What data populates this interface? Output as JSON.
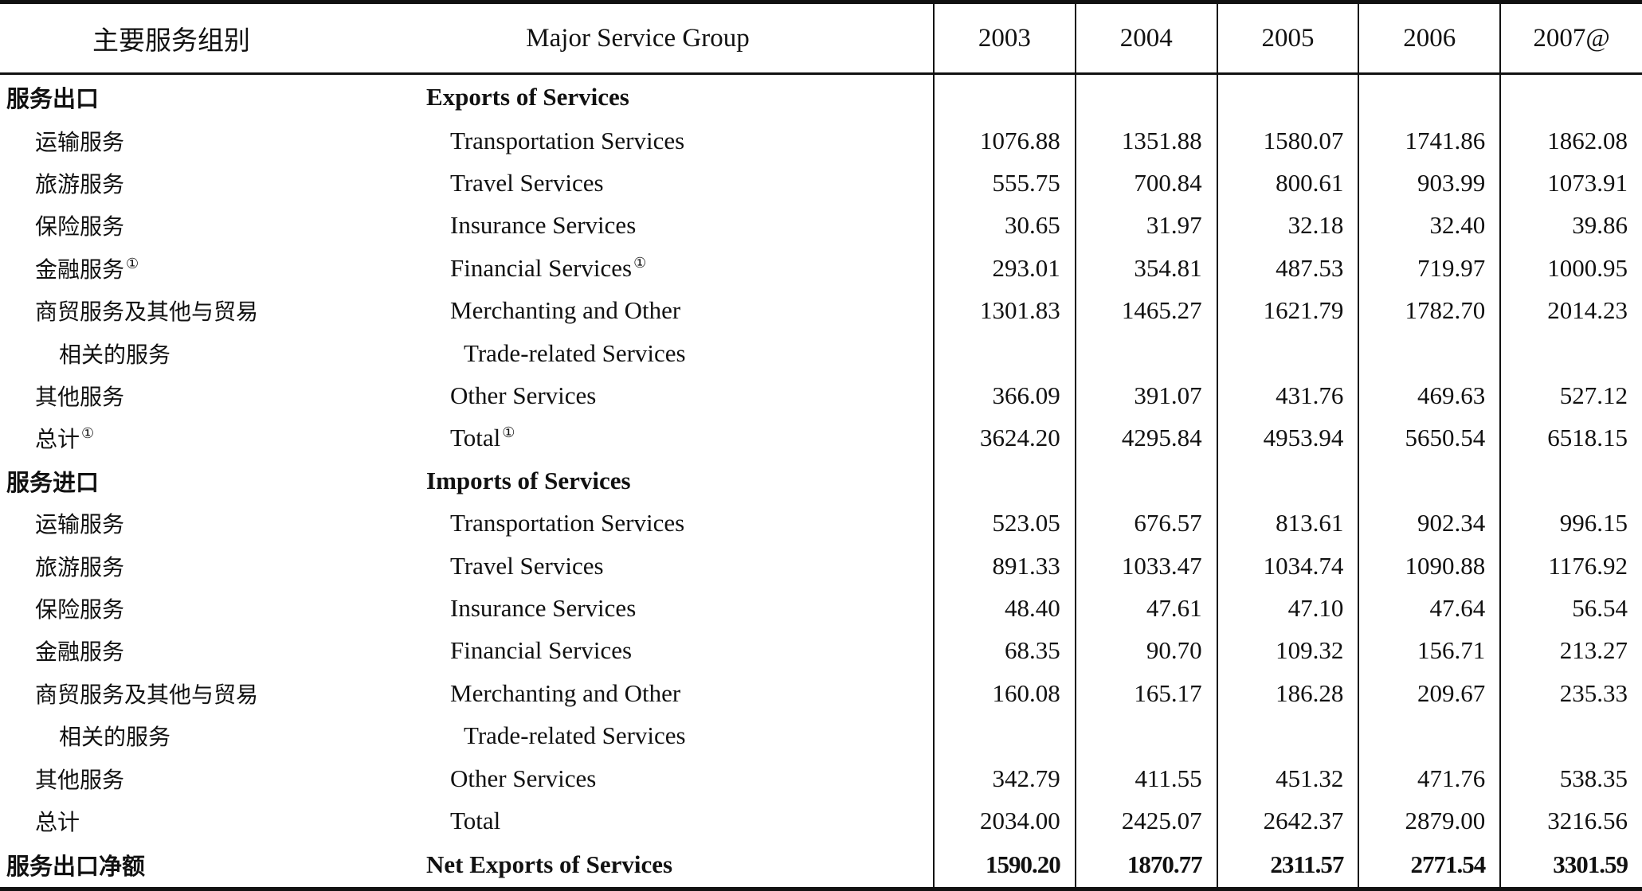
{
  "header": {
    "cn_label": "主要服务组别",
    "en_label": "Major Service Group",
    "years": [
      "2003",
      "2004",
      "2005",
      "2006",
      "2007@"
    ]
  },
  "rows": [
    {
      "cn": "服务出口",
      "en": "Exports of Services",
      "values": [
        "",
        "",
        "",
        "",
        ""
      ]
    },
    {
      "cn": "运输服务",
      "en": "Transportation Services",
      "values": [
        "1076.88",
        "1351.88",
        "1580.07",
        "1741.86",
        "1862.08"
      ]
    },
    {
      "cn": "旅游服务",
      "en": "Travel Services",
      "values": [
        "555.75",
        "700.84",
        "800.61",
        "903.99",
        "1073.91"
      ]
    },
    {
      "cn": "保险服务",
      "en": "Insurance Services",
      "values": [
        "30.65",
        "31.97",
        "32.18",
        "32.40",
        "39.86"
      ]
    },
    {
      "cn": "金融服务",
      "en": "Financial Services",
      "note": "①",
      "values": [
        "293.01",
        "354.81",
        "487.53",
        "719.97",
        "1000.95"
      ]
    },
    {
      "cn": "商贸服务及其他与贸易",
      "en": "Merchanting and Other",
      "values": [
        "1301.83",
        "1465.27",
        "1621.79",
        "1782.70",
        "2014.23"
      ]
    },
    {
      "cn": "相关的服务",
      "en": "Trade-related Services",
      "values": [
        "",
        "",
        "",
        "",
        ""
      ]
    },
    {
      "cn": "其他服务",
      "en": "Other Services",
      "values": [
        "366.09",
        "391.07",
        "431.76",
        "469.63",
        "527.12"
      ]
    },
    {
      "cn": "总计",
      "en": "Total",
      "note": "①",
      "values": [
        "3624.20",
        "4295.84",
        "4953.94",
        "5650.54",
        "6518.15"
      ]
    },
    {
      "cn": "服务进口",
      "en": "Imports of Services",
      "values": [
        "",
        "",
        "",
        "",
        ""
      ]
    },
    {
      "cn": "运输服务",
      "en": "Transportation Services",
      "values": [
        "523.05",
        "676.57",
        "813.61",
        "902.34",
        "996.15"
      ]
    },
    {
      "cn": "旅游服务",
      "en": "Travel Services",
      "values": [
        "891.33",
        "1033.47",
        "1034.74",
        "1090.88",
        "1176.92"
      ]
    },
    {
      "cn": "保险服务",
      "en": "Insurance Services",
      "values": [
        "48.40",
        "47.61",
        "47.10",
        "47.64",
        "56.54"
      ]
    },
    {
      "cn": "金融服务",
      "en": "Financial Services",
      "values": [
        "68.35",
        "90.70",
        "109.32",
        "156.71",
        "213.27"
      ]
    },
    {
      "cn": "商贸服务及其他与贸易",
      "en": "Merchanting and Other",
      "values": [
        "160.08",
        "165.17",
        "186.28",
        "209.67",
        "235.33"
      ]
    },
    {
      "cn": "相关的服务",
      "en": "Trade-related Services",
      "values": [
        "",
        "",
        "",
        "",
        ""
      ]
    },
    {
      "cn": "其他服务",
      "en": "Other Services",
      "values": [
        "342.79",
        "411.55",
        "451.32",
        "471.76",
        "538.35"
      ]
    },
    {
      "cn": "总计",
      "en": "Total",
      "values": [
        "2034.00",
        "2425.07",
        "2642.37",
        "2879.00",
        "3216.56"
      ]
    },
    {
      "cn": "服务出口净额",
      "en": "Net Exports of Services",
      "values": [
        "1590.20",
        "1870.77",
        "2311.57",
        "2771.54",
        "3301.59"
      ]
    }
  ]
}
